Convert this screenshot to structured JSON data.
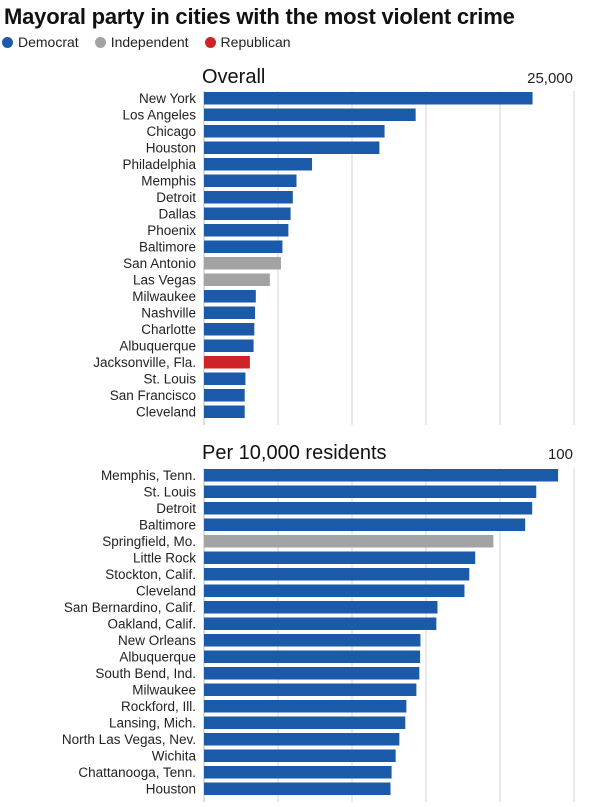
{
  "title": "Mayoral party in cities with the most violent crime",
  "legend": [
    {
      "label": "Democrat",
      "color": "#1a5aa8"
    },
    {
      "label": "Independent",
      "color": "#a3a3a3"
    },
    {
      "label": "Republican",
      "color": "#cf2328"
    }
  ],
  "chart_data": [
    {
      "type": "bar",
      "orientation": "horizontal",
      "title": "Overall",
      "xlim": [
        0,
        25000
      ],
      "max_tick_label": "25,000",
      "grid": true,
      "categories": [
        "New York",
        "Los Angeles",
        "Chicago",
        "Houston",
        "Philadelphia",
        "Memphis",
        "Detroit",
        "Dallas",
        "Phoenix",
        "Baltimore",
        "San Antonio",
        "Las Vegas",
        "Milwaukee",
        "Nashville",
        "Charlotte",
        "Albuquerque",
        "Jacksonville, Fla.",
        "St. Louis",
        "San Francisco",
        "Cleveland"
      ],
      "values": [
        22200,
        14300,
        12200,
        11850,
        7300,
        6250,
        6000,
        5850,
        5700,
        5300,
        5200,
        4450,
        3500,
        3450,
        3400,
        3350,
        3100,
        2800,
        2750,
        2750
      ],
      "party": [
        "D",
        "D",
        "D",
        "D",
        "D",
        "D",
        "D",
        "D",
        "D",
        "D",
        "I",
        "I",
        "D",
        "D",
        "D",
        "D",
        "R",
        "D",
        "D",
        "D"
      ]
    },
    {
      "type": "bar",
      "orientation": "horizontal",
      "title": "Per 10,000 residents",
      "xlim": [
        0,
        100
      ],
      "max_tick_label": "100",
      "grid": true,
      "categories": [
        "Memphis, Tenn.",
        "St. Louis",
        "Detroit",
        "Baltimore",
        "Springfield, Mo.",
        "Little Rock",
        "Stockton, Calif.",
        "Cleveland",
        "San Bernardino, Calif.",
        "Oakland, Calif.",
        "New Orleans",
        "Albuquerque",
        "South Bend, Ind.",
        "Milwaukee",
        "Rockford, Ill.",
        "Lansing, Mich.",
        "North Las Vegas, Nev.",
        "Wichita",
        "Chattanooga, Tenn.",
        "Houston"
      ],
      "values": [
        95.7,
        89.8,
        88.7,
        86.8,
        78.2,
        73.3,
        71.7,
        70.4,
        63.1,
        62.8,
        58.5,
        58.4,
        58.2,
        57.4,
        54.7,
        54.4,
        52.8,
        51.8,
        50.7,
        50.4
      ],
      "party": [
        "D",
        "D",
        "D",
        "D",
        "I",
        "D",
        "D",
        "D",
        "D",
        "D",
        "D",
        "D",
        "D",
        "D",
        "D",
        "D",
        "D",
        "D",
        "D",
        "D"
      ]
    }
  ]
}
